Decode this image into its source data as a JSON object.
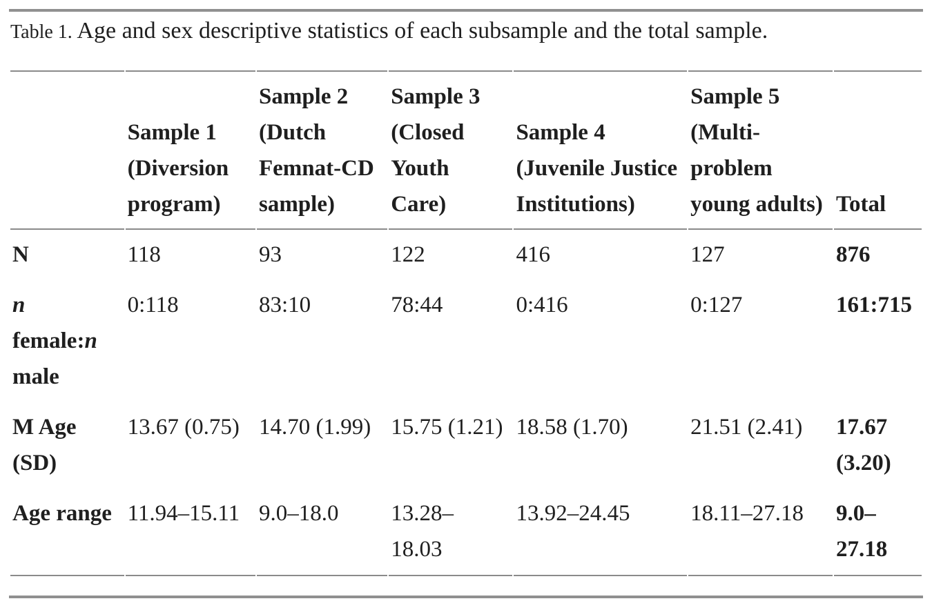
{
  "caption": {
    "label": "Table 1.",
    "text": "Age and sex descriptive statistics of each subsample and the total sample."
  },
  "colors": {
    "text": "#1f1f1f",
    "thick_rule": "#909090",
    "thin_rule": "#8a8a8a"
  },
  "table": {
    "columns": [
      {
        "label": ""
      },
      {
        "label": "Sample 1\n(Diversion\nprogram)"
      },
      {
        "label": "Sample 2\n(Dutch\nFemnat-CD\nsample)"
      },
      {
        "label": "Sample 3\n(Closed\nYouth\nCare)"
      },
      {
        "label": "Sample 4\n(Juvenile Justice\nInstitutions)"
      },
      {
        "label": "Sample 5\n(Multi-\nproblem\nyoung adults)"
      },
      {
        "label": "Total"
      }
    ],
    "rows": [
      {
        "label_segments": [
          {
            "t": "N",
            "i": false
          }
        ],
        "values": [
          "118",
          "93",
          "122",
          "416",
          "127",
          "876"
        ]
      },
      {
        "label_segments": [
          {
            "t": "n",
            "i": true
          },
          {
            "t": "\nfemale:",
            "i": false
          },
          {
            "t": "n",
            "i": true
          },
          {
            "t": "\nmale",
            "i": false
          }
        ],
        "values": [
          "0:118",
          "83:10",
          "78:44",
          "0:416",
          "0:127",
          "161:715"
        ]
      },
      {
        "label_segments": [
          {
            "t": "M Age\n(SD)",
            "i": false
          }
        ],
        "values": [
          "13.67 (0.75)",
          "14.70 (1.99)",
          "15.75 (1.21)",
          "18.58 (1.70)",
          "21.51 (2.41)",
          "17.67\n(3.20)"
        ]
      },
      {
        "label_segments": [
          {
            "t": "Age range",
            "i": false
          }
        ],
        "values": [
          "11.94–15.11",
          "9.0–18.0",
          "13.28–\n18.03",
          "13.92–24.45",
          "18.11–27.18",
          "9.0–\n27.18"
        ]
      }
    ]
  }
}
